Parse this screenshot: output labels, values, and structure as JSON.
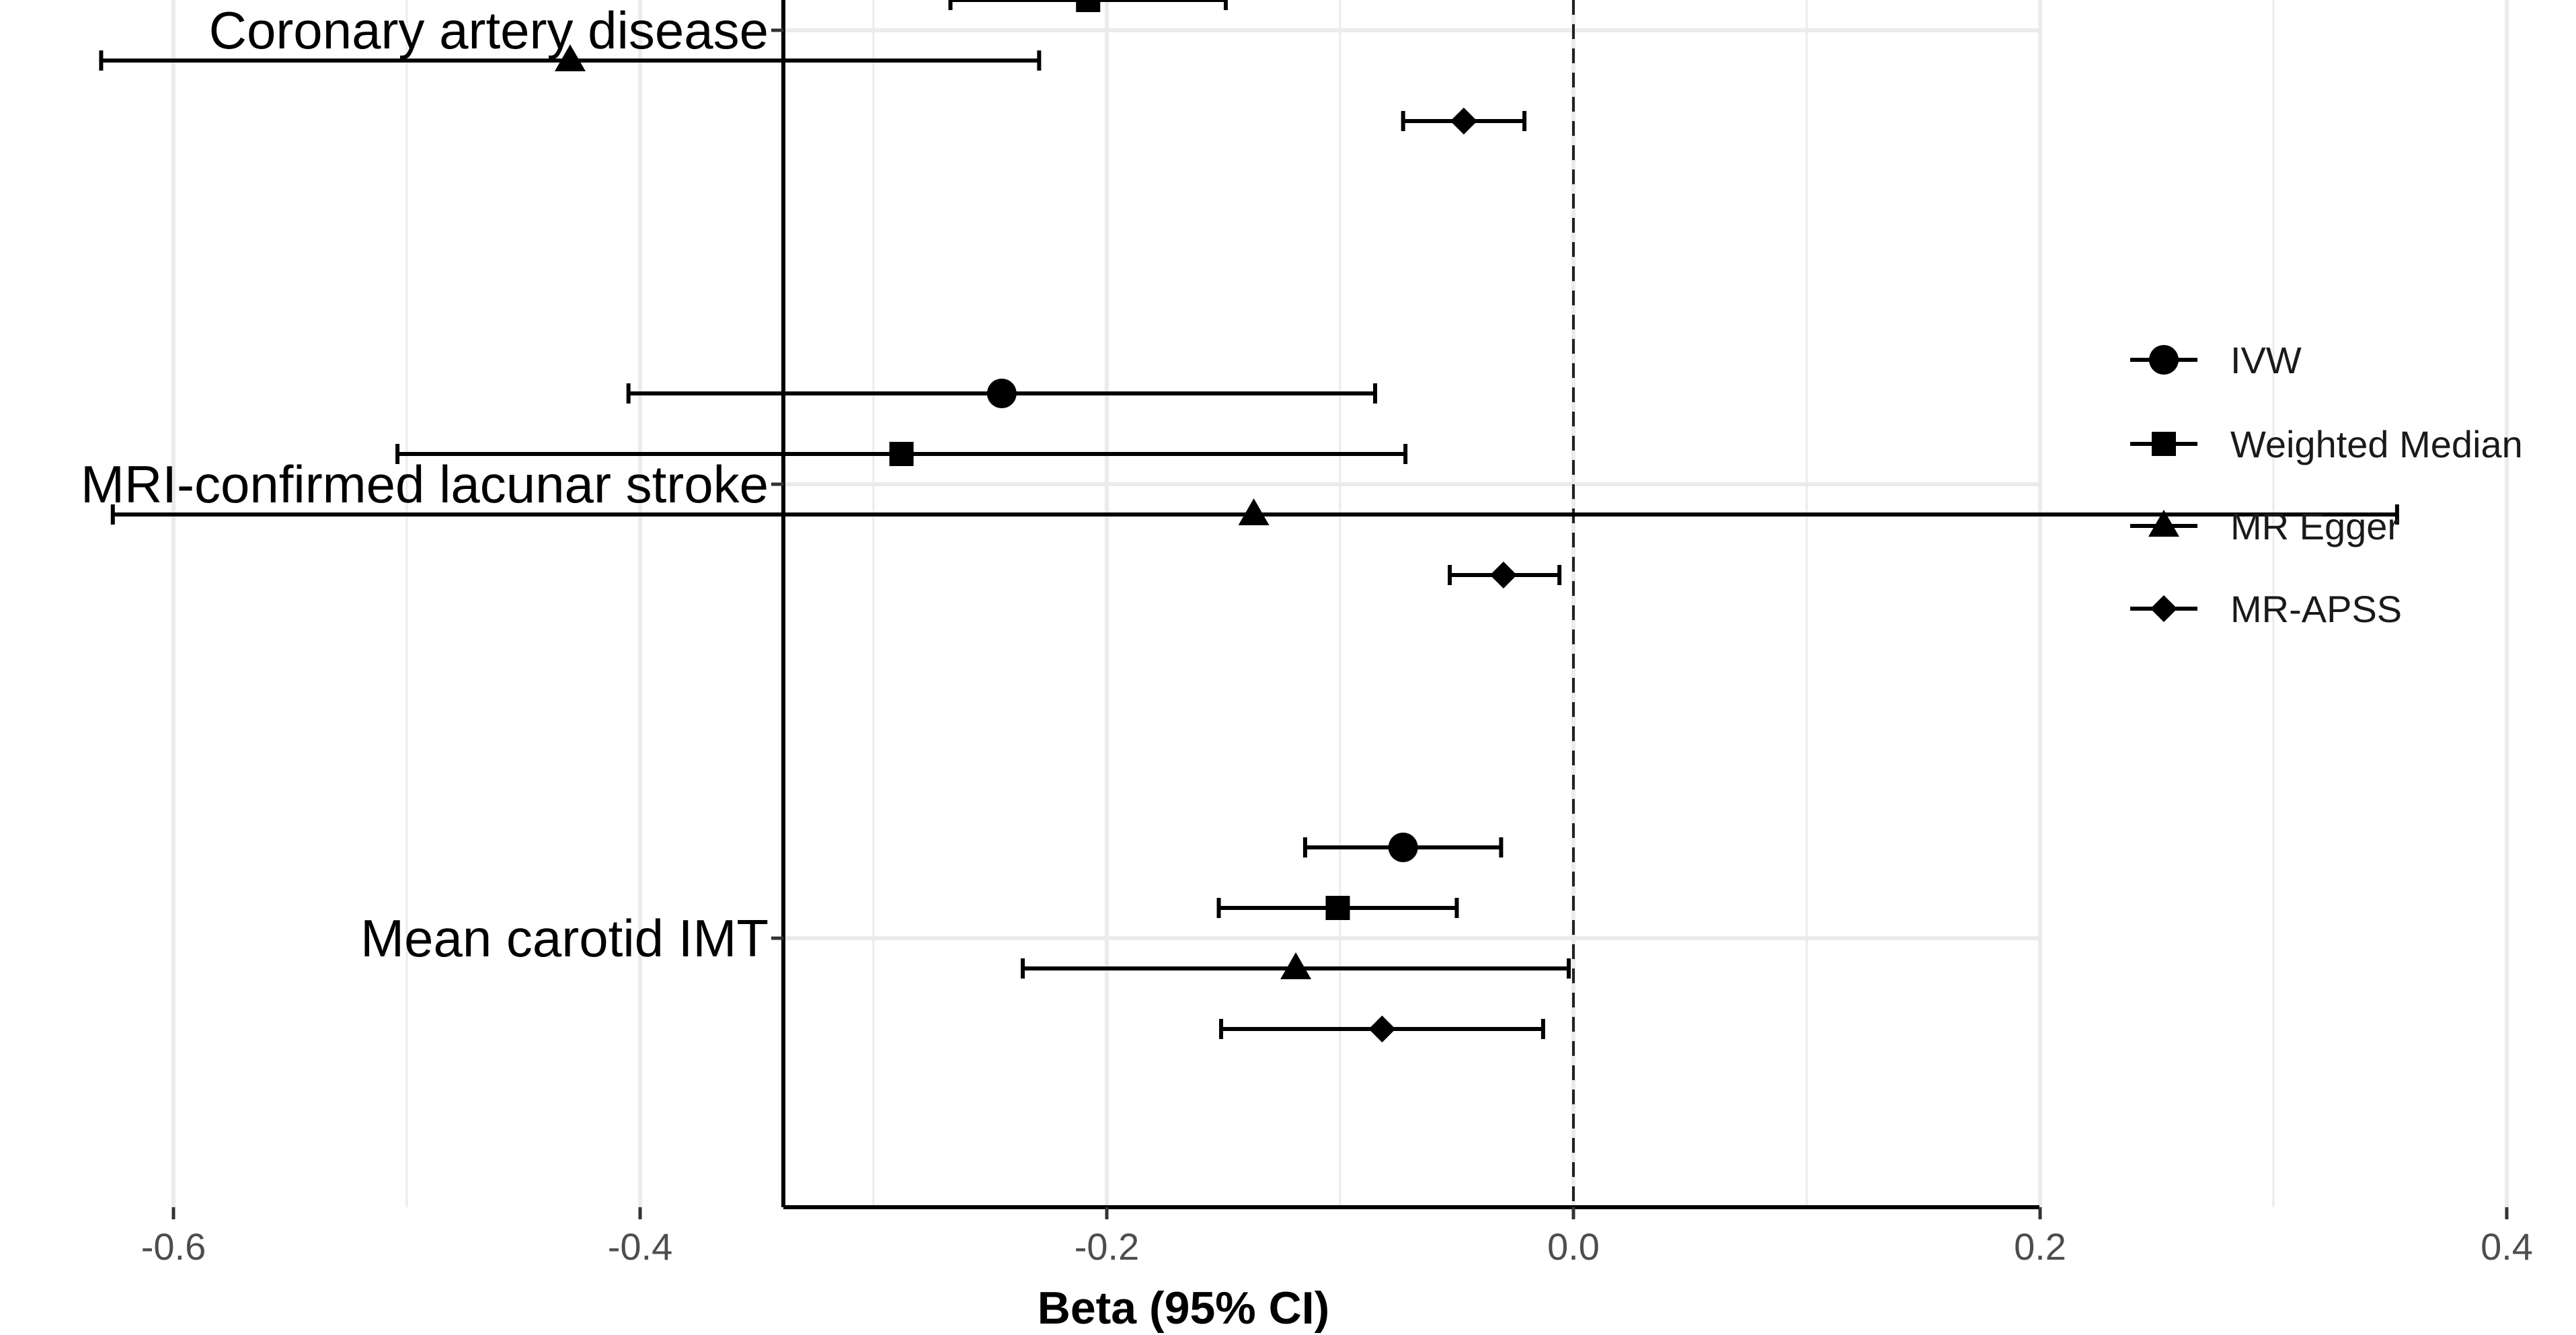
{
  "chart_data": {
    "type": "forest",
    "xlabel": "Beta (95% CI)",
    "xlim": [
      -0.68,
      0.4
    ],
    "x_ticks": [
      -0.6,
      -0.4,
      -0.2,
      0.0,
      0.2,
      0.4
    ],
    "x_tick_labels": [
      "-0.6",
      "-0.4",
      "-0.2",
      "0.0",
      "0.2",
      "0.4"
    ],
    "reference_line": 0.0,
    "grid": true,
    "legend_position": "right",
    "categories": [
      "Coronary artery disease",
      "MRI-confirmed lacunar stroke",
      "Mean carotid IMT"
    ],
    "series": [
      {
        "name": "IVW",
        "marker": "circle",
        "points": [
          {
            "category": "MRI-confirmed lacunar stroke",
            "beta": -0.245,
            "lower": -0.405,
            "upper": -0.085
          },
          {
            "category": "Mean carotid IMT",
            "beta": -0.073,
            "lower": -0.115,
            "upper": -0.031
          }
        ]
      },
      {
        "name": "Weighted Median",
        "marker": "square",
        "points": [
          {
            "category": "Coronary artery disease",
            "beta": -0.208,
            "lower": -0.267,
            "upper": -0.149
          },
          {
            "category": "MRI-confirmed lacunar stroke",
            "beta": -0.288,
            "lower": -0.504,
            "upper": -0.072
          },
          {
            "category": "Mean carotid IMT",
            "beta": -0.101,
            "lower": -0.152,
            "upper": -0.05
          }
        ]
      },
      {
        "name": "MR Egger",
        "marker": "triangle",
        "points": [
          {
            "category": "Coronary artery disease",
            "beta": -0.43,
            "lower": -0.631,
            "upper": -0.229
          },
          {
            "category": "MRI-confirmed lacunar stroke",
            "beta": -0.137,
            "lower": -0.626,
            "upper": 0.353
          },
          {
            "category": "Mean carotid IMT",
            "beta": -0.119,
            "lower": -0.236,
            "upper": -0.002
          }
        ]
      },
      {
        "name": "MR-APSS",
        "marker": "diamond",
        "points": [
          {
            "category": "Coronary artery disease",
            "beta": -0.047,
            "lower": -0.073,
            "upper": -0.021
          },
          {
            "category": "MRI-confirmed lacunar stroke",
            "beta": -0.03,
            "lower": -0.053,
            "upper": -0.006
          },
          {
            "category": "Mean carotid IMT",
            "beta": -0.082,
            "lower": -0.151,
            "upper": -0.013
          }
        ]
      }
    ]
  }
}
